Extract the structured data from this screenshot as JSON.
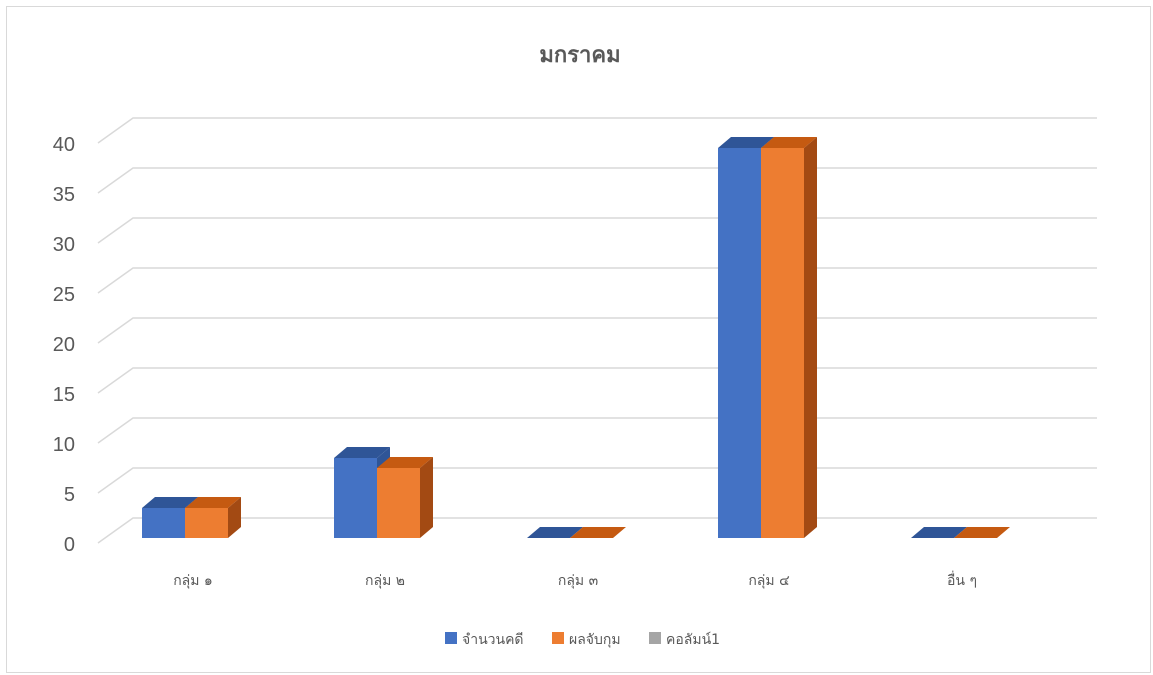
{
  "chart_data": {
    "type": "bar",
    "title": "มกราคม",
    "categories": [
      "กลุ่ม ๑",
      "กลุ่ม ๒",
      "กลุ่ม ๓",
      "กลุ่ม ๔",
      "อื่น ๆ"
    ],
    "series": [
      {
        "name": "จำนวนคดี",
        "values": [
          3,
          8,
          0,
          39,
          0
        ],
        "color": "#4472C4",
        "top": "#2F5597",
        "side": "#2F5597"
      },
      {
        "name": "ผลจับกุม",
        "values": [
          3,
          7,
          0,
          39,
          0
        ],
        "color": "#ED7D31",
        "top": "#C55A11",
        "side": "#A34A13"
      },
      {
        "name": "คอลัมน์1",
        "values": [
          0,
          0,
          0,
          0,
          0
        ],
        "color": "#A5A5A5",
        "top": "#7F7F7F",
        "side": "#7F7F7F"
      }
    ],
    "yticks": [
      "0",
      "5",
      "10",
      "15",
      "20",
      "25",
      "30",
      "35",
      "40"
    ],
    "ylim": [
      0,
      40
    ],
    "grid": true,
    "legend": "bottom",
    "style": "3d-clustered-column"
  }
}
